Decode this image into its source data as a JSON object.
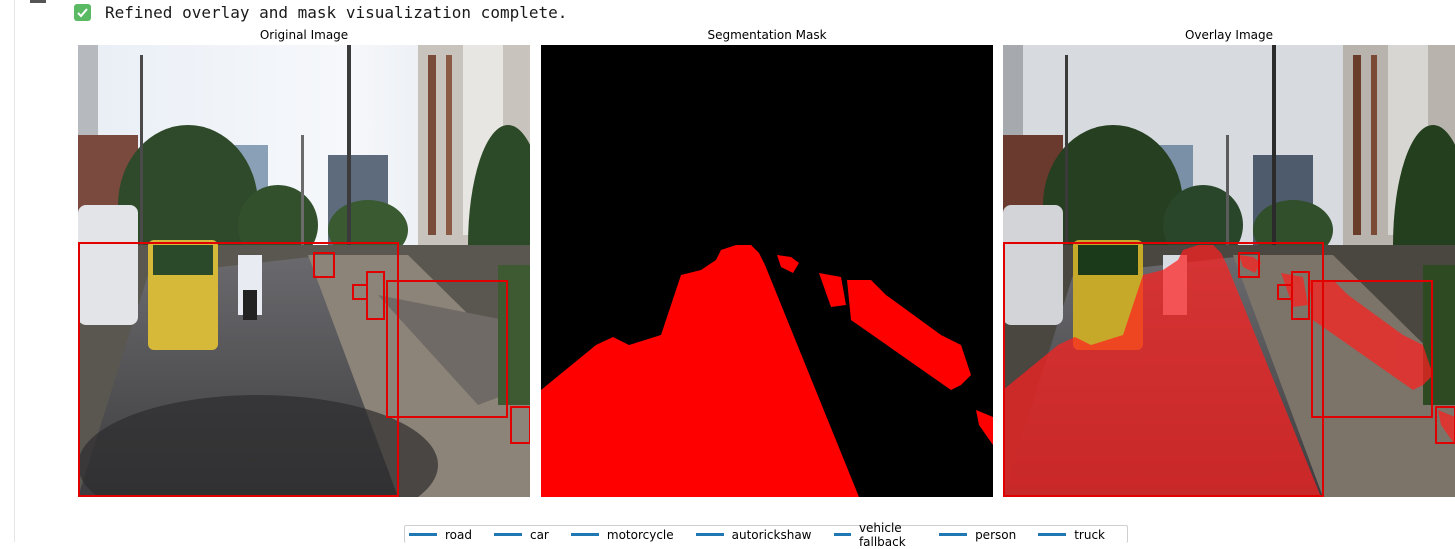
{
  "status": {
    "icon": "check-icon",
    "text": "Refined overlay and mask visualization complete."
  },
  "panels": [
    {
      "title": "Original Image"
    },
    {
      "title": "Segmentation Mask"
    },
    {
      "title": "Overlay Image"
    }
  ],
  "legend": {
    "line_color": "#1f77b4",
    "items": [
      "road",
      "car",
      "motorcycle",
      "autorickshaw",
      "vehicle fallback",
      "person",
      "truck"
    ]
  },
  "colors": {
    "mask_fill": "#ff0000",
    "box_stroke": "#e00000",
    "check_bg": "#5ab963"
  }
}
